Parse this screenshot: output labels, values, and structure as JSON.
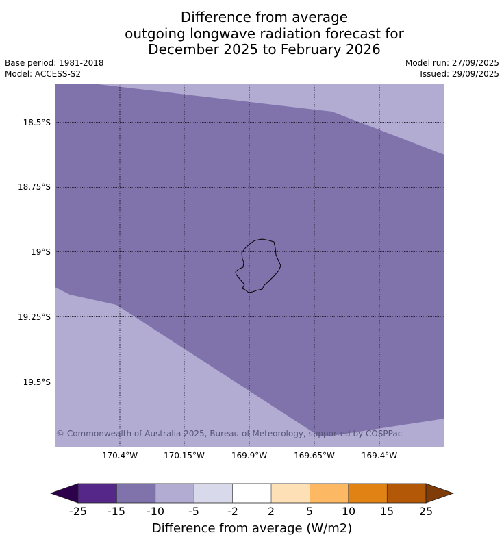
{
  "title": {
    "line1": "Difference from average",
    "line2": "outgoing longwave radiation forecast for",
    "line3": "December 2025 to February 2026"
  },
  "meta": {
    "base_period": "Base period: 1981-2018",
    "model": "Model: ACCESS-S2",
    "model_run": "Model run: 27/09/2025",
    "issued": "Issued: 29/09/2025"
  },
  "map": {
    "latitude_labels": [
      "18.5°S",
      "18.75°S",
      "19°S",
      "19.25°S",
      "19.5°S"
    ],
    "longitude_labels": [
      "170.4°W",
      "170.15°W",
      "169.9°W",
      "169.65°W",
      "169.4°W"
    ],
    "copyright": "© Commonwealth of Australia 2025, Bureau of Meteorology, supported by COSPPac",
    "colors": {
      "band_minus15_minus10": "#8073ac",
      "band_minus10_minus5": "#b2abd2",
      "coastline": "#000000"
    }
  },
  "colorbar": {
    "ticks": [
      "-25",
      "-15",
      "-10",
      "-5",
      "-2",
      "2",
      "5",
      "10",
      "15",
      "25"
    ],
    "label": "Difference from average (W/m2)",
    "colors": [
      "#2d004b",
      "#542788",
      "#8073ac",
      "#b2abd2",
      "#d8daeb",
      "#ffffff",
      "#fee0b6",
      "#fdb863",
      "#e08214",
      "#b35806",
      "#7f3b08"
    ]
  }
}
